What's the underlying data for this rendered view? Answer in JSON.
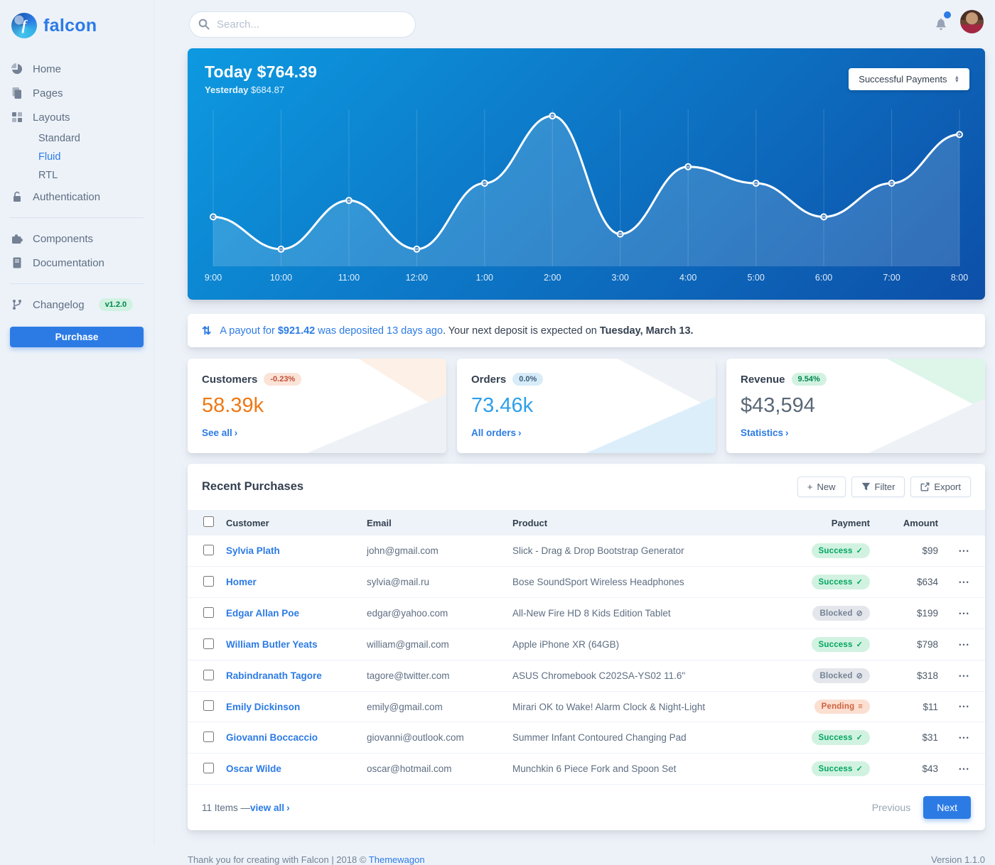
{
  "topbar": {
    "search_placeholder": "Search..."
  },
  "sidebar": {
    "brand": "falcon",
    "home": "Home",
    "pages": "Pages",
    "layouts": "Layouts",
    "standard": "Standard",
    "fluid": "Fluid",
    "rtl": "RTL",
    "authentication": "Authentication",
    "components": "Components",
    "documentation": "Documentation",
    "changelog": "Changelog",
    "changelog_badge": "v1.2.0",
    "purchase": "Purchase"
  },
  "chart_card": {
    "today": "Today $764.39",
    "yesterday_label": "Yesterday",
    "yesterday_value": " $684.87",
    "select_value": "Successful Payments"
  },
  "chart_data": {
    "type": "line",
    "title": "Today $764.39",
    "subtitle": "Yesterday $684.87",
    "x": [
      "9:00",
      "10:00",
      "11:00",
      "12:00",
      "1:00",
      "2:00",
      "3:00",
      "4:00",
      "5:00",
      "6:00",
      "7:00",
      "8:00"
    ],
    "series": [
      {
        "name": "Successful Payments",
        "values": [
          69,
          24,
          92,
          24,
          116,
          210,
          45,
          139,
          116,
          69,
          116,
          184
        ]
      }
    ],
    "ylim": [
      0,
      230
    ],
    "grid": "vertical-only",
    "legend": "none",
    "line_color": "#ffffff",
    "fill_color": "rgba(255,255,255,0.16)",
    "background_gradient": [
      "#0d99e0",
      "#0d4fa8"
    ]
  },
  "payout_notice": {
    "blue_prefix": "A payout for ",
    "amount": "$921.42",
    "blue_suffix": " was deposited 13 days ago",
    "dark_prefix": ". Your next deposit is expected on ",
    "dark_strong": "Tuesday, March 13."
  },
  "stats": [
    {
      "title": "Customers",
      "badge": "-0.23%",
      "badge_type": "warning",
      "value": "58.39k",
      "accent": "warning",
      "link": "See all"
    },
    {
      "title": "Orders",
      "badge": "0.0%",
      "badge_type": "info",
      "value": "73.46k",
      "accent": "info",
      "link": "All orders"
    },
    {
      "title": "Revenue",
      "badge": "9.54%",
      "badge_type": "success",
      "value": "$43,594",
      "accent": "dark",
      "link": "Statistics"
    }
  ],
  "table": {
    "title": "Recent Purchases",
    "buttons": {
      "new": "New",
      "filter": "Filter",
      "export": "Export"
    },
    "columns": {
      "customer": "Customer",
      "email": "Email",
      "product": "Product",
      "payment": "Payment",
      "amount": "Amount"
    },
    "rows": [
      {
        "customer": "Sylvia Plath",
        "email": "john@gmail.com",
        "product": "Slick - Drag & Drop Bootstrap Generator",
        "payment": {
          "label": "Success",
          "type": "success"
        },
        "amount": "$99"
      },
      {
        "customer": "Homer",
        "email": "sylvia@mail.ru",
        "product": "Bose SoundSport Wireless Headphones",
        "payment": {
          "label": "Success",
          "type": "success"
        },
        "amount": "$634"
      },
      {
        "customer": "Edgar Allan Poe",
        "email": "edgar@yahoo.com",
        "product": "All-New Fire HD 8 Kids Edition Tablet",
        "payment": {
          "label": "Blocked",
          "type": "blocked"
        },
        "amount": "$199"
      },
      {
        "customer": "William Butler Yeats",
        "email": "william@gmail.com",
        "product": "Apple iPhone XR (64GB)",
        "payment": {
          "label": "Success",
          "type": "success"
        },
        "amount": "$798"
      },
      {
        "customer": "Rabindranath Tagore",
        "email": "tagore@twitter.com",
        "product": "ASUS Chromebook C202SA-YS02 11.6\"",
        "payment": {
          "label": "Blocked",
          "type": "blocked"
        },
        "amount": "$318"
      },
      {
        "customer": "Emily Dickinson",
        "email": "emily@gmail.com",
        "product": "Mirari OK to Wake! Alarm Clock & Night-Light",
        "payment": {
          "label": "Pending",
          "type": "pending"
        },
        "amount": "$11"
      },
      {
        "customer": "Giovanni Boccaccio",
        "email": "giovanni@outlook.com",
        "product": "Summer Infant Contoured Changing Pad",
        "payment": {
          "label": "Success",
          "type": "success"
        },
        "amount": "$31"
      },
      {
        "customer": "Oscar Wilde",
        "email": "oscar@hotmail.com",
        "product": "Munchkin 6 Piece Fork and Spoon Set",
        "payment": {
          "label": "Success",
          "type": "success"
        },
        "amount": "$43"
      }
    ],
    "footer": {
      "items_text": "11 Items — ",
      "view_all": "view all",
      "previous": "Previous",
      "next": "Next"
    }
  },
  "page_footer": {
    "thanks": "Thank you for creating with Falcon | 2018 © ",
    "link": "Themewagon",
    "version": "Version 1.1.0"
  },
  "icons": {
    "exchange": "⇅",
    "ellipsis": "•••",
    "chevron": "›",
    "caret_up": "▲",
    "caret_down": "▼",
    "plus": "+"
  },
  "badge_icons": {
    "success": "✓",
    "blocked": "⊘",
    "pending": "≡"
  },
  "colors": {
    "accent_blue": "#2c7be5",
    "page_bg": "#edf2f9",
    "success": "#00a65f",
    "warning_orange": "#ee7814",
    "info_cyan": "#2e9fe9"
  }
}
